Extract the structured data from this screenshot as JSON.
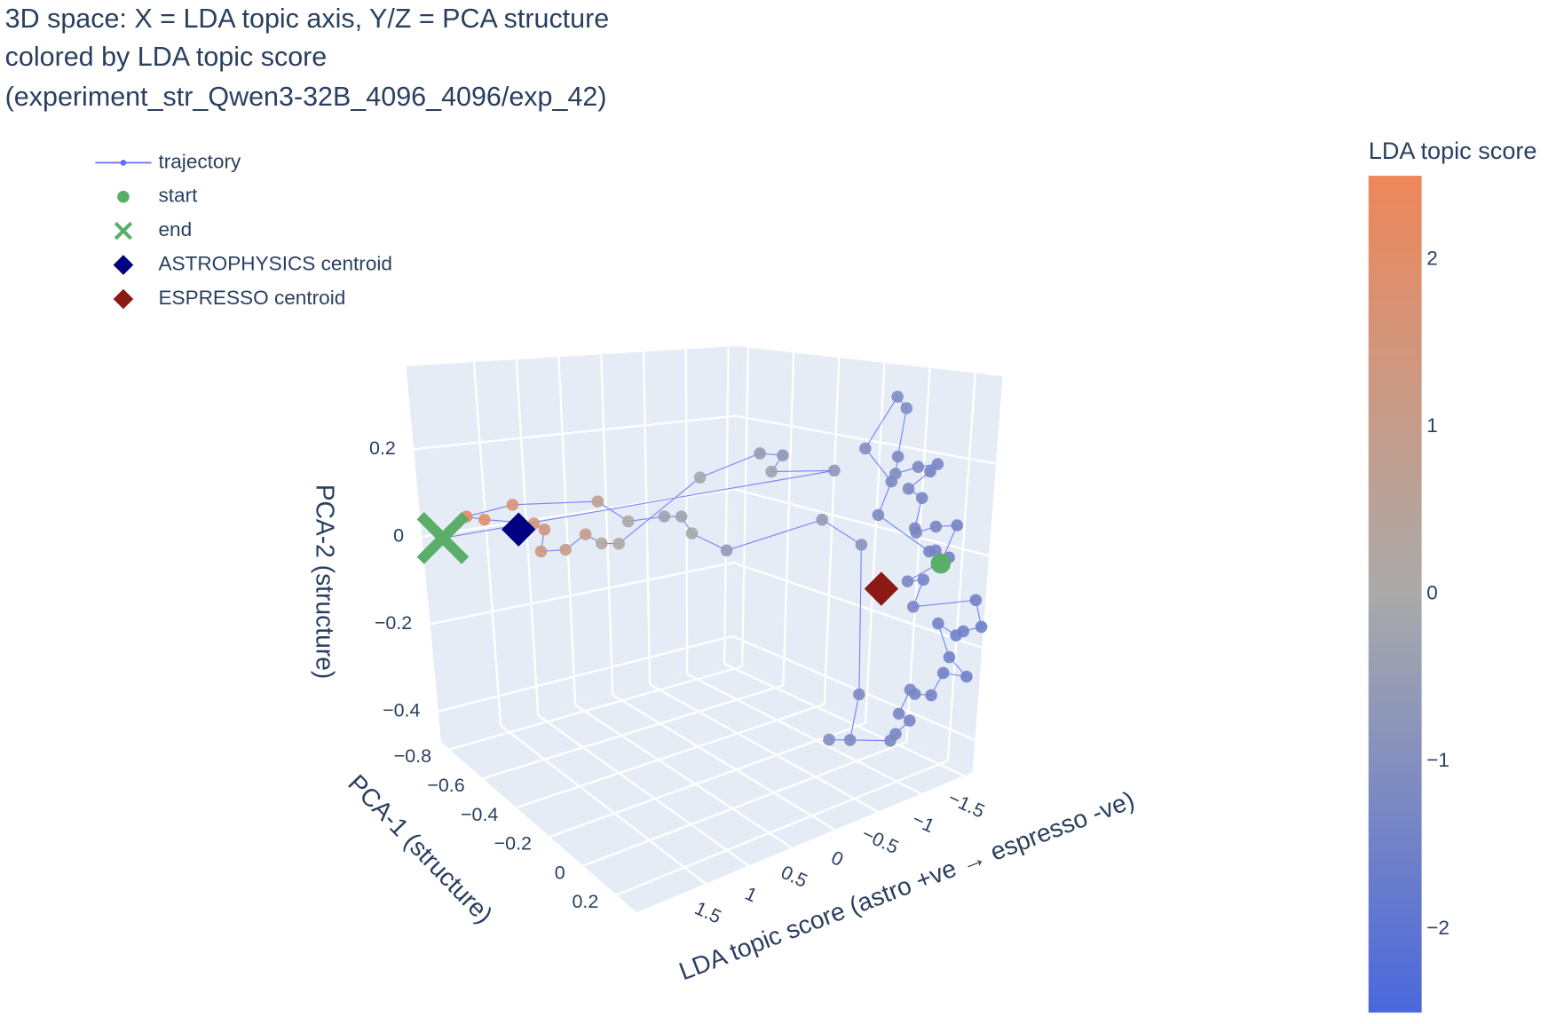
{
  "chart_data": {
    "type": "scatter3d",
    "title": [
      "3D space: X = LDA topic axis, Y/Z = PCA structure",
      "colored by LDA topic score",
      "(experiment_str_Qwen3-32B_4096_4096/exp_42)"
    ],
    "xlabel": "LDA topic score (astro +ve → espresso -ve)",
    "ylabel": "PCA-1 (structure)",
    "zlabel": "PCA-2 (structure)",
    "xlim": [
      -1.6,
      2.3
    ],
    "ylim": [
      -0.85,
      0.32
    ],
    "zlim": [
      -0.47,
      0.39
    ],
    "xticks": [
      {
        "value": -1.5,
        "label": "−1.5"
      },
      {
        "value": -1,
        "label": "−1"
      },
      {
        "value": -0.5,
        "label": "−0.5"
      },
      0,
      0.5,
      1,
      1.5
    ],
    "yticks": [
      {
        "value": -0.8,
        "label": "−0.8"
      },
      {
        "value": -0.6,
        "label": "−0.6"
      },
      {
        "value": -0.4,
        "label": "−0.4"
      },
      {
        "value": -0.2,
        "label": "−0.2"
      },
      0,
      0.2
    ],
    "zticks": [
      {
        "value": -0.4,
        "label": "−0.4"
      },
      {
        "value": -0.2,
        "label": "−0.2"
      },
      0,
      0.2
    ],
    "grid": true,
    "legend": "top-left",
    "colorbar": {
      "title": "LDA topic score",
      "cmin": -2.5,
      "cmax": 2.5,
      "ticks": [
        {
          "value": -2,
          "label": "−2"
        },
        {
          "value": -1,
          "label": "−1"
        },
        0,
        1,
        2
      ],
      "colorscale": [
        "#4b67dc",
        "#aaaaaa",
        "#ee875a"
      ]
    },
    "series": [
      {
        "name": "trajectory",
        "mode": "lines+markers",
        "symbol": "circle",
        "color": "#636efa",
        "color_by": "x",
        "x": [
          -1.3,
          -1.4,
          -1.3,
          -1.2,
          -1.3,
          -1.3,
          -1.2,
          -1.4,
          -1.3,
          -1.2,
          -1.1,
          -1.2,
          -1.1,
          -1.1,
          -1.0,
          -1.2,
          -1.2,
          -1.4,
          -1.4,
          -1.5,
          -1.3,
          -1.4,
          -1.3,
          -1.5,
          -1.6,
          -1.5,
          -1.5,
          -1.4,
          -1.5,
          -1.6,
          -1.5,
          -1.4,
          -1.3,
          -1.3,
          -1.3,
          -1.4,
          -1.3,
          -1.3,
          -1.1,
          -1.2,
          -1.2,
          -0.9,
          -0.6,
          -0.6,
          -0.1,
          -0.3,
          -0.3,
          0.1,
          0.8,
          1.7,
          2.2,
          2.0,
          1.5,
          1.4,
          1.3,
          1.1,
          1.0,
          0.3,
          0.2,
          -0.1,
          -0.6,
          -0.7,
          -0.3,
          -0.7,
          2.25
        ],
        "y": [
          0.222,
          0.245,
          0.189,
          0.141,
          0.094,
          0.118,
          0.094,
          0.108,
          0.179,
          0.132,
          0.071,
          0.038,
          0.104,
          0.061,
          -0.032,
          0.015,
          -0.037,
          0.127,
          0.155,
          0.179,
          0.075,
          0.108,
          0.108,
          0.315,
          0.31,
          0.268,
          0.236,
          0.189,
          0.212,
          0.259,
          0.189,
          0.179,
          0.141,
          0.118,
          0.071,
          0.085,
          0.061,
          0.038,
          -0.18,
          -0.117,
          -0.084,
          0.011,
          -0.056,
          -0.504,
          -0.472,
          -0.603,
          -0.686,
          -0.703,
          -0.563,
          -0.612,
          -0.637,
          -0.632,
          -0.593,
          -0.583,
          -0.651,
          -0.608,
          -0.545,
          -0.758,
          -0.712,
          -0.433,
          -0.354,
          -0.288,
          -0.178,
          -0.049,
          -0.755
        ],
        "z": [
          -0.009,
          0.071,
          0.068,
          0.055,
          0.052,
          0.123,
          0.147,
          0.175,
          0.205,
          0.2,
          0.184,
          0.213,
          0.334,
          0.356,
          0.235,
          0.154,
          0.071,
          -0.002,
          0.004,
          -0.015,
          -0.07,
          -0.068,
          -0.122,
          -0.09,
          -0.156,
          -0.165,
          -0.179,
          -0.153,
          -0.231,
          -0.273,
          -0.27,
          -0.314,
          -0.311,
          -0.306,
          -0.369,
          -0.389,
          -0.417,
          -0.437,
          -0.47,
          -0.463,
          -0.35,
          0.028,
          0.092,
          -0.057,
          0.013,
          0.02,
          0.004,
          0.003,
          0.106,
          0.118,
          0.101,
          0.089,
          0.073,
          0.058,
          -0.013,
          -0.006,
          0.041,
          -0.056,
          -0.05,
          0.153,
          0.202,
          0.202,
          0.199,
          0.199,
          0.022
        ]
      },
      {
        "name": "start",
        "mode": "markers",
        "symbol": "circle",
        "color": "#5aae6a",
        "x": [
          -1.3
        ],
        "y": [
          0.222
        ],
        "z": [
          -0.009
        ]
      },
      {
        "name": "end",
        "mode": "markers",
        "symbol": "x",
        "color": "#5aae6a",
        "x": [
          2.25
        ],
        "y": [
          -0.755
        ],
        "z": [
          0.022
        ]
      },
      {
        "name": "ASTROPHYSICS centroid",
        "mode": "markers",
        "symbol": "diamond",
        "color": "#000080",
        "x": [
          1.8
        ],
        "y": [
          -0.542
        ],
        "z": [
          0.083
        ]
      },
      {
        "name": "ESPRESSO centroid",
        "mode": "markers",
        "symbol": "diamond",
        "color": "#8b1a14",
        "x": [
          -1.2
        ],
        "y": [
          -0.005
        ],
        "z": [
          -0.093
        ]
      }
    ]
  }
}
